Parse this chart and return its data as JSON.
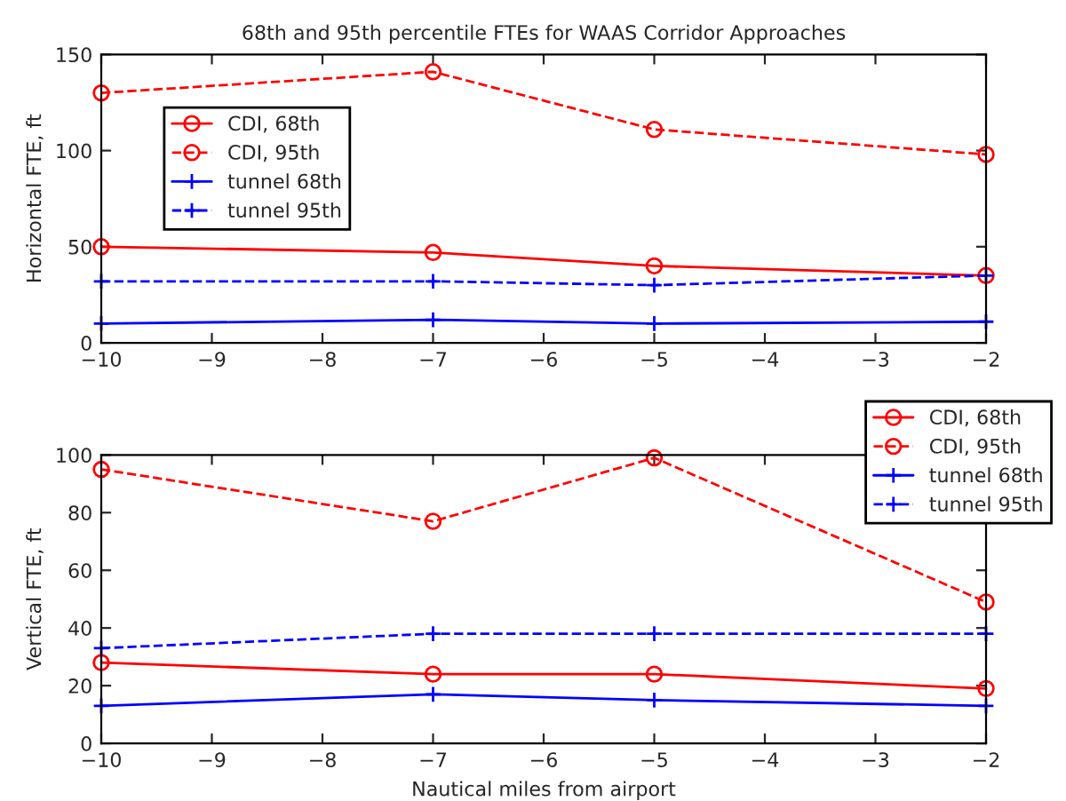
{
  "chart_data": [
    {
      "type": "line",
      "title": "68th and 95th percentile FTEs for WAAS Corridor Approaches",
      "ylabel": "Horizontal FTE, ft",
      "x": [
        -10,
        -7,
        -5,
        -2
      ],
      "xlim": [
        -10,
        -2
      ],
      "xticks": [
        -10,
        -9,
        -8,
        -7,
        -6,
        -5,
        -4,
        -3,
        -2
      ],
      "ylim": [
        0,
        150
      ],
      "yticks": [
        0,
        50,
        100,
        150
      ],
      "grid": false,
      "legend": "top left",
      "series": [
        {
          "name": "CDI, 68th",
          "color": "#ff0000",
          "marker": "circle",
          "line_style": "solid",
          "values": [
            50,
            47,
            40,
            35
          ]
        },
        {
          "name": "CDI, 95th",
          "color": "#ff0000",
          "marker": "circle",
          "line_style": "dashed",
          "values": [
            130,
            141,
            111,
            98
          ]
        },
        {
          "name": "tunnel 68th",
          "color": "#0000ff",
          "marker": "cross",
          "line_style": "solid",
          "values": [
            10,
            12,
            10,
            11
          ]
        },
        {
          "name": "tunnel 95th",
          "color": "#0000ff",
          "marker": "cross",
          "line_style": "dashed",
          "values": [
            32,
            32,
            30,
            35
          ]
        }
      ]
    },
    {
      "type": "line",
      "xlabel": "Nautical miles from airport",
      "ylabel": "Vertical FTE, ft",
      "x": [
        -10,
        -7,
        -5,
        -2
      ],
      "xlim": [
        -10,
        -2
      ],
      "xticks": [
        -10,
        -9,
        -8,
        -7,
        -6,
        -5,
        -4,
        -3,
        -2
      ],
      "ylim": [
        0,
        100
      ],
      "yticks": [
        0,
        20,
        40,
        60,
        80,
        100
      ],
      "grid": false,
      "legend": "top right",
      "series": [
        {
          "name": "CDI, 68th",
          "color": "#ff0000",
          "marker": "circle",
          "line_style": "solid",
          "values": [
            28,
            24,
            24,
            19
          ]
        },
        {
          "name": "CDI, 95th",
          "color": "#ff0000",
          "marker": "circle",
          "line_style": "dashed",
          "values": [
            95,
            77,
            99,
            49
          ]
        },
        {
          "name": "tunnel 68th",
          "color": "#0000ff",
          "marker": "cross",
          "line_style": "solid",
          "values": [
            13,
            17,
            15,
            13
          ]
        },
        {
          "name": "tunnel 95th",
          "color": "#0000ff",
          "marker": "cross",
          "line_style": "dashed",
          "values": [
            33,
            38,
            38,
            38
          ]
        }
      ]
    }
  ]
}
